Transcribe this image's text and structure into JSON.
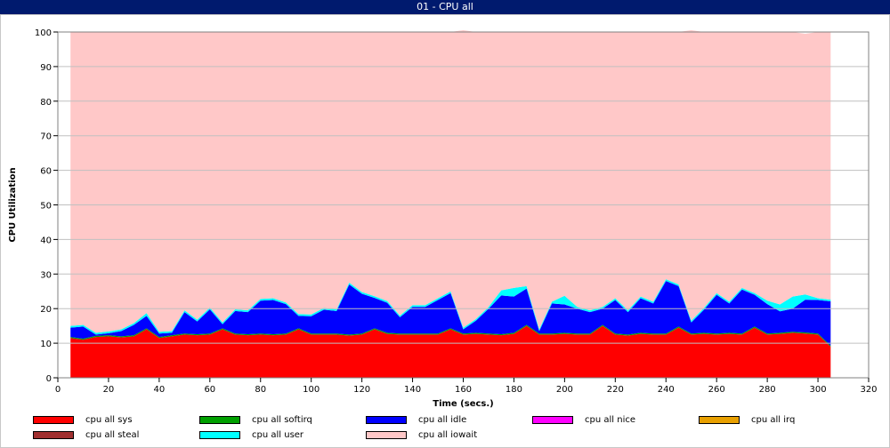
{
  "window": {
    "title": "01 - CPU all"
  },
  "chart_data": {
    "type": "area",
    "stacked": true,
    "title": "01 - CPU all",
    "xlabel": "Time (secs.)",
    "ylabel": "CPU Utilization",
    "xlim": [
      0,
      320
    ],
    "ylim": [
      0,
      100
    ],
    "xticks": [
      0,
      20,
      40,
      60,
      80,
      100,
      120,
      140,
      160,
      180,
      200,
      220,
      240,
      260,
      280,
      300,
      320
    ],
    "yticks": [
      0,
      10,
      20,
      30,
      40,
      50,
      60,
      70,
      80,
      90,
      100
    ],
    "grid": "horizontal",
    "legend_position": "bottom",
    "x": [
      5,
      10,
      15,
      20,
      25,
      30,
      35,
      40,
      45,
      50,
      55,
      60,
      65,
      70,
      75,
      80,
      85,
      90,
      95,
      100,
      105,
      110,
      115,
      120,
      125,
      130,
      135,
      140,
      145,
      150,
      155,
      160,
      165,
      170,
      175,
      180,
      185,
      190,
      195,
      200,
      205,
      210,
      215,
      220,
      225,
      230,
      235,
      240,
      245,
      250,
      255,
      260,
      265,
      270,
      275,
      280,
      285,
      290,
      295,
      300,
      305
    ],
    "series": [
      {
        "name": "cpu all sys",
        "color": "#ff0000",
        "values": [
          11.5,
          11,
          11.8,
          12,
          11.7,
          12,
          14,
          11.5,
          12,
          12.5,
          12.3,
          12.5,
          14,
          12.5,
          12.3,
          12.5,
          12.3,
          12.5,
          14,
          12.5,
          12.5,
          12.5,
          12.2,
          12.5,
          14,
          12.7,
          12.5,
          12.5,
          12.5,
          12.5,
          14,
          12.5,
          12.7,
          12.5,
          12.3,
          12.7,
          15,
          12.5,
          12.5,
          12.7,
          12.5,
          12.5,
          15,
          12.5,
          12.2,
          12.7,
          12.5,
          12.5,
          14.5,
          12.5,
          12.7,
          12.5,
          12.7,
          12.5,
          14.5,
          12.5,
          12.7,
          13,
          12.8,
          12.5,
          9
        ]
      },
      {
        "name": "cpu all softirq",
        "color": "#00a000",
        "values": [
          0.3,
          0.3,
          0.3,
          0.3,
          0.3,
          0.3,
          0.3,
          0.3,
          0.3,
          0.3,
          0.3,
          0.3,
          0.3,
          0.3,
          0.3,
          0.3,
          0.3,
          0.3,
          0.3,
          0.3,
          0.3,
          0.3,
          0.3,
          0.3,
          0.3,
          0.3,
          0.3,
          0.3,
          0.3,
          0.3,
          0.3,
          0.3,
          0.3,
          0.3,
          0.3,
          0.3,
          0.3,
          0.3,
          0.3,
          0.3,
          0.3,
          0.3,
          0.3,
          0.3,
          0.3,
          0.3,
          0.3,
          0.3,
          0.3,
          0.3,
          0.3,
          0.3,
          0.3,
          0.3,
          0.3,
          0.3,
          0.3,
          0.3,
          0.3,
          0.3,
          0.3
        ]
      },
      {
        "name": "cpu all idle",
        "color": "#0000ff",
        "values": [
          2.7,
          3.5,
          0.4,
          0.6,
          1.5,
          3,
          3.6,
          1,
          0.7,
          6.2,
          3.7,
          7,
          1.2,
          6.5,
          6.4,
          9.5,
          9.9,
          8.5,
          3.6,
          5,
          6.9,
          6.5,
          14.5,
          11.5,
          8.8,
          8.7,
          4.7,
          7.7,
          7.7,
          9.7,
          10.2,
          1.2,
          3.5,
          7.2,
          11.2,
          10.5,
          10.5,
          0.7,
          8.7,
          8.2,
          7.2,
          6.2,
          4.7,
          9.7,
          6.5,
          10,
          8.7,
          15.2,
          11.7,
          3.2,
          6.7,
          11.2,
          8.5,
          12.7,
          9.2,
          8.5,
          6.2,
          6.7,
          9.5,
          9.7,
          12.8
        ]
      },
      {
        "name": "cpu all nice",
        "color": "#ff00ff",
        "values": [
          0,
          0,
          0,
          0,
          0,
          0,
          0,
          0,
          0,
          0,
          0,
          0,
          0,
          0,
          0,
          0,
          0,
          0,
          0,
          0,
          0,
          0,
          0,
          0,
          0,
          0,
          0,
          0,
          0,
          0,
          0,
          0,
          0,
          0,
          0,
          0,
          0,
          0,
          0,
          0,
          0,
          0,
          0,
          0,
          0,
          0,
          0,
          0,
          0,
          0,
          0,
          0,
          0,
          0,
          0,
          0,
          0,
          0,
          0,
          0,
          0
        ]
      },
      {
        "name": "cpu all irq",
        "color": "#e8a000",
        "values": [
          0,
          0,
          0,
          0,
          0,
          0,
          0,
          0,
          0,
          0,
          0,
          0,
          0,
          0,
          0,
          0,
          0,
          0,
          0,
          0,
          0,
          0,
          0,
          0,
          0,
          0,
          0,
          0,
          0,
          0,
          0,
          0,
          0,
          0,
          0,
          0,
          0,
          0,
          0,
          0,
          0,
          0,
          0,
          0,
          0,
          0,
          0,
          0,
          0,
          0,
          0,
          0,
          0,
          0,
          0,
          0,
          0,
          0,
          0,
          0,
          0
        ]
      },
      {
        "name": "cpu all steal",
        "color": "#a03030",
        "values": [
          0,
          0,
          0,
          0,
          0,
          0,
          0,
          0,
          0,
          0,
          0,
          0,
          0,
          0,
          0,
          0,
          0,
          0,
          0,
          0,
          0,
          0,
          0,
          0,
          0,
          0,
          0,
          0,
          0,
          0,
          0,
          0,
          0,
          0,
          0,
          0,
          0,
          0,
          0,
          0,
          0,
          0,
          0,
          0,
          0,
          0,
          0,
          0,
          0,
          0,
          0,
          0,
          0,
          0,
          0,
          0,
          0,
          0,
          0,
          0,
          0
        ]
      },
      {
        "name": "cpu all user",
        "color": "#00ffff",
        "values": [
          0.5,
          0.5,
          0.5,
          0.5,
          0.5,
          0.5,
          0.8,
          0.5,
          0.5,
          0.5,
          0.5,
          0.5,
          0.5,
          0.5,
          0.5,
          0.5,
          0.5,
          0.5,
          0.5,
          0.5,
          0.5,
          0.5,
          0.5,
          0.5,
          0.5,
          0.5,
          0.5,
          0.5,
          0.5,
          0.5,
          0.5,
          0.5,
          0.5,
          0.5,
          1.5,
          2.5,
          0.7,
          0.5,
          0.5,
          2.5,
          0.5,
          0.5,
          0.5,
          0.5,
          0.5,
          0.5,
          0.5,
          0.5,
          0.5,
          0.5,
          0.5,
          0.5,
          0.5,
          0.5,
          0.5,
          1,
          2,
          3.5,
          1.5,
          0.5,
          0.5
        ]
      },
      {
        "name": "cpu all iowait",
        "color": "#ffc8c8",
        "values": [
          85,
          84.7,
          87,
          86.6,
          86,
          84.2,
          81.3,
          86.7,
          86.5,
          80.5,
          83.2,
          79.7,
          84,
          80.2,
          80.5,
          77.2,
          77,
          78.2,
          81.6,
          81.7,
          79.8,
          80.2,
          72.5,
          75.2,
          76.4,
          77.8,
          82,
          79,
          79,
          77,
          75,
          86,
          83,
          79.5,
          74.7,
          74,
          73.5,
          86,
          78,
          76.3,
          79.5,
          80.5,
          79.5,
          77,
          80.5,
          76.5,
          78,
          71.5,
          73,
          84,
          79.8,
          75.5,
          78,
          74,
          75.5,
          77.7,
          78.8,
          76.5,
          75.4,
          77,
          77.4
        ]
      }
    ]
  }
}
